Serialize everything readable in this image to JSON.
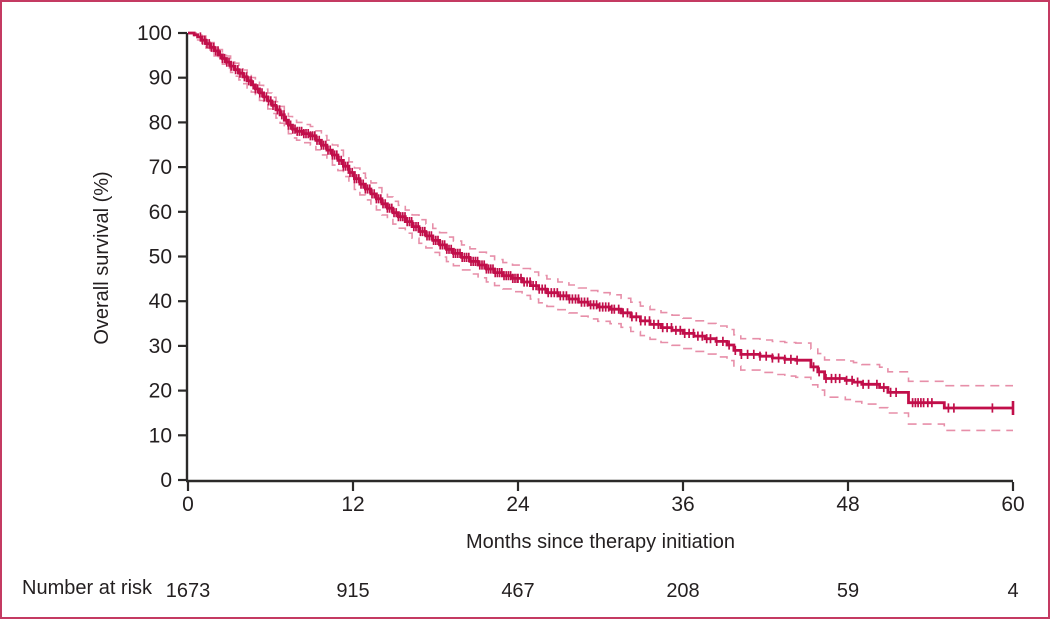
{
  "chart_data": {
    "type": "line",
    "subtype": "kaplan-meier-step-curve-with-95ci-and-censor-marks",
    "title": "",
    "xlabel": "Months since therapy initiation",
    "ylabel": "Overall survival (%)",
    "xlim": [
      0,
      60
    ],
    "ylim": [
      0,
      100
    ],
    "x_ticks": [
      0,
      12,
      24,
      36,
      48,
      60
    ],
    "y_ticks": [
      0,
      10,
      20,
      30,
      40,
      50,
      60,
      70,
      80,
      90,
      100
    ],
    "grid": false,
    "legend": false,
    "series": [
      {
        "name": "Overall survival",
        "points": [
          [
            0,
            100
          ],
          [
            0.45,
            99.6
          ],
          [
            0.7,
            99.1
          ],
          [
            1.0,
            98.4
          ],
          [
            1.3,
            97.6
          ],
          [
            1.6,
            96.8
          ],
          [
            1.9,
            96.0
          ],
          [
            2.2,
            95.1
          ],
          [
            2.5,
            94.3
          ],
          [
            2.8,
            93.5
          ],
          [
            3.1,
            92.6
          ],
          [
            3.4,
            91.8
          ],
          [
            3.7,
            91.0
          ],
          [
            4.0,
            90.2
          ],
          [
            4.3,
            89.3
          ],
          [
            4.6,
            88.4
          ],
          [
            4.9,
            87.5
          ],
          [
            5.2,
            86.6
          ],
          [
            5.5,
            85.7
          ],
          [
            5.8,
            84.8
          ],
          [
            6.1,
            83.8
          ],
          [
            6.4,
            82.8
          ],
          [
            6.7,
            81.7
          ],
          [
            7.0,
            80.5
          ],
          [
            7.3,
            79.4
          ],
          [
            7.6,
            78.5
          ],
          [
            7.9,
            78.0
          ],
          [
            8.4,
            77.5
          ],
          [
            8.9,
            77.0
          ],
          [
            9.3,
            76.0
          ],
          [
            9.7,
            74.9
          ],
          [
            10.1,
            73.8
          ],
          [
            10.5,
            72.7
          ],
          [
            10.9,
            71.5
          ],
          [
            11.3,
            70.2
          ],
          [
            11.7,
            68.8
          ],
          [
            12.1,
            67.4
          ],
          [
            12.5,
            66.2
          ],
          [
            12.9,
            65.1
          ],
          [
            13.3,
            64.0
          ],
          [
            13.7,
            62.9
          ],
          [
            14.1,
            61.8
          ],
          [
            14.5,
            60.8
          ],
          [
            14.9,
            59.8
          ],
          [
            15.3,
            58.9
          ],
          [
            15.8,
            57.8
          ],
          [
            16.3,
            56.7
          ],
          [
            16.8,
            55.6
          ],
          [
            17.3,
            54.6
          ],
          [
            17.8,
            53.6
          ],
          [
            18.3,
            52.6
          ],
          [
            18.8,
            51.6
          ],
          [
            19.3,
            50.7
          ],
          [
            19.9,
            49.8
          ],
          [
            20.5,
            48.9
          ],
          [
            21.1,
            48.1
          ],
          [
            21.7,
            47.2
          ],
          [
            22.3,
            46.4
          ],
          [
            22.9,
            45.7
          ],
          [
            23.6,
            45.1
          ],
          [
            24.3,
            44.3
          ],
          [
            24.9,
            43.5
          ],
          [
            25.5,
            42.7
          ],
          [
            26.1,
            41.9
          ],
          [
            26.9,
            41.2
          ],
          [
            27.7,
            40.5
          ],
          [
            28.4,
            39.8
          ],
          [
            29.1,
            39.2
          ],
          [
            29.8,
            38.7
          ],
          [
            30.7,
            38.2
          ],
          [
            31.5,
            37.4
          ],
          [
            32.2,
            36.5
          ],
          [
            32.9,
            35.6
          ],
          [
            33.6,
            34.8
          ],
          [
            34.4,
            34.1
          ],
          [
            35.2,
            33.5
          ],
          [
            36.0,
            32.8
          ],
          [
            36.8,
            32.2
          ],
          [
            37.6,
            31.6
          ],
          [
            38.4,
            31.0
          ],
          [
            39.2,
            30.2
          ],
          [
            39.7,
            29.0
          ],
          [
            40.2,
            28.1
          ],
          [
            41.6,
            27.7
          ],
          [
            42.5,
            27.3
          ],
          [
            43.4,
            27.0
          ],
          [
            44.2,
            26.8
          ],
          [
            45.3,
            25.3
          ],
          [
            45.8,
            24.2
          ],
          [
            46.3,
            22.7
          ],
          [
            47.8,
            22.3
          ],
          [
            48.4,
            21.9
          ],
          [
            49.0,
            21.4
          ],
          [
            50.3,
            20.7
          ],
          [
            50.9,
            19.6
          ],
          [
            52.4,
            17.3
          ],
          [
            55.0,
            16.1
          ],
          [
            60,
            16.1
          ]
        ],
        "ci_halfwidth": [
          [
            0,
            0.15
          ],
          [
            1,
            0.9
          ],
          [
            3,
            1.4
          ],
          [
            6,
            1.8
          ],
          [
            9,
            2.1
          ],
          [
            12,
            2.4
          ],
          [
            18,
            2.7
          ],
          [
            24,
            3.0
          ],
          [
            30,
            3.2
          ],
          [
            36,
            3.4
          ],
          [
            40,
            3.5
          ],
          [
            44,
            3.8
          ],
          [
            46.5,
            4.2
          ],
          [
            50,
            4.5
          ],
          [
            52.5,
            4.8
          ],
          [
            55,
            5.0
          ],
          [
            60,
            5.0
          ]
        ],
        "censor_dense_spans": [
          [
            0.9,
            24,
            0.16
          ],
          [
            24,
            31,
            0.22
          ],
          [
            31,
            38,
            0.32
          ],
          [
            38,
            44.6,
            0.45
          ]
        ],
        "censor_sparse": [
          45.5,
          45.9,
          46.4,
          46.8,
          47.1,
          47.4,
          47.9,
          48.3,
          48.7,
          49.1,
          49.5,
          50.1,
          50.6,
          51.1,
          51.5,
          52.7,
          52.9,
          53.1,
          53.3,
          53.5,
          53.8,
          54.1,
          55.3,
          55.7,
          58.5
        ],
        "end_tick_month": 60
      }
    ],
    "number_at_risk": {
      "label": "Number at risk",
      "months": [
        0,
        12,
        24,
        36,
        48,
        60
      ],
      "values": [
        1673,
        915,
        467,
        208,
        59,
        4
      ]
    },
    "colors": {
      "curve": "#c10f4a",
      "ci": "#e78fa9",
      "axis": "#2b2a29",
      "text": "#231f20",
      "border": "#c43a62",
      "background": "#ffffff"
    }
  }
}
